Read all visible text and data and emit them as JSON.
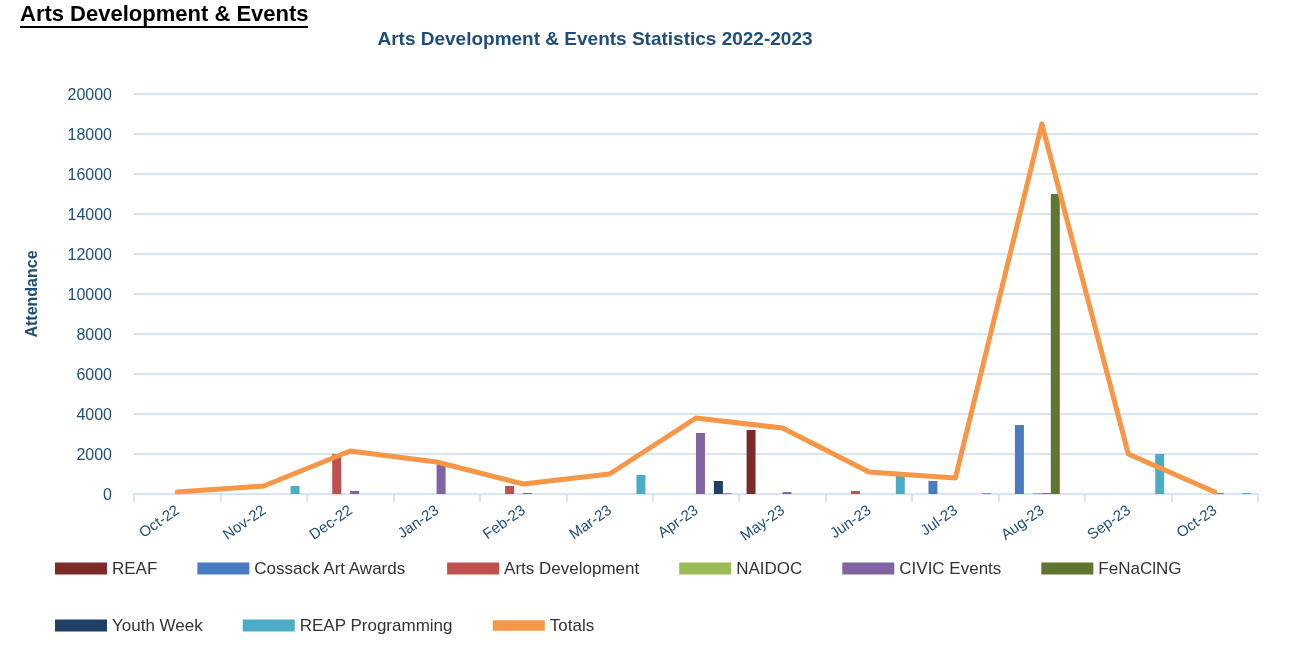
{
  "chart_data": {
    "type": "bar",
    "title": "Arts Development & Events Statistics 2022-2023",
    "ylabel": "Attendance",
    "annotations": [
      "Arts Development & Events"
    ],
    "categories": [
      "Oct-22",
      "Nov-22",
      "Dec-22",
      "Jan-23",
      "Feb-23",
      "Mar-23",
      "Apr-23",
      "May-23",
      "Jun-23",
      "Jul-23",
      "Aug-23",
      "Sep-23",
      "Oct-23"
    ],
    "series": [
      {
        "name": "REAF",
        "color": "#7f2a2a",
        "values": [
          null,
          null,
          null,
          null,
          null,
          null,
          null,
          3200,
          null,
          null,
          null,
          null,
          null
        ]
      },
      {
        "name": "Cossack Art Awards",
        "color": "#4a7bc0",
        "values": [
          null,
          null,
          null,
          null,
          null,
          null,
          null,
          null,
          null,
          650,
          3450,
          null,
          null
        ]
      },
      {
        "name": "Arts Development",
        "color": "#c0504d",
        "values": [
          null,
          null,
          2000,
          null,
          400,
          null,
          null,
          null,
          150,
          null,
          null,
          null,
          null
        ]
      },
      {
        "name": "NAIDOC",
        "color": "#9bbb59",
        "values": [
          null,
          null,
          null,
          null,
          null,
          null,
          null,
          null,
          null,
          null,
          50,
          null,
          null
        ]
      },
      {
        "name": "CIVIC Events",
        "color": "#8064a2",
        "values": [
          null,
          null,
          150,
          1500,
          50,
          null,
          3050,
          100,
          null,
          null,
          50,
          null,
          50
        ]
      },
      {
        "name": "FeNaClNG",
        "color": "#5f7530",
        "values": [
          null,
          null,
          null,
          null,
          null,
          null,
          null,
          null,
          null,
          null,
          15000,
          null,
          null
        ]
      },
      {
        "name": "Youth Week",
        "color": "#1f3f66",
        "values": [
          null,
          null,
          null,
          null,
          null,
          null,
          650,
          null,
          null,
          null,
          null,
          null,
          null
        ]
      },
      {
        "name": "REAP Programming",
        "color": "#4bacc6",
        "values": [
          null,
          400,
          null,
          null,
          null,
          950,
          50,
          null,
          900,
          50,
          null,
          2000,
          50
        ]
      },
      {
        "name": "Totals",
        "type": "line",
        "color": "#f79646",
        "values": [
          100,
          400,
          2150,
          1600,
          500,
          1000,
          3800,
          3300,
          1100,
          800,
          18500,
          2000,
          100
        ]
      }
    ],
    "ylim": [
      0,
      20000
    ],
    "yticks": [
      0,
      2000,
      4000,
      6000,
      8000,
      10000,
      12000,
      14000,
      16000,
      18000,
      20000
    ],
    "grid": "y",
    "legend": "bottom",
    "marker": "none",
    "line_style": "solid"
  }
}
